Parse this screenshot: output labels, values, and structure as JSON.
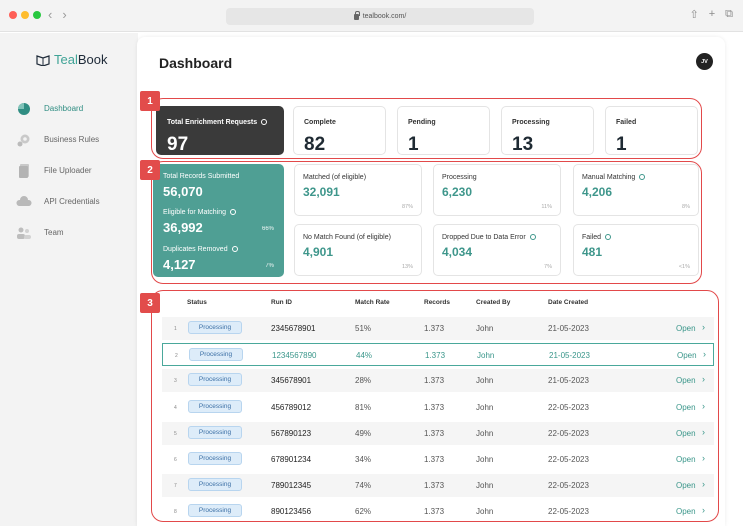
{
  "browser": {
    "url": "tealbook.com/",
    "back_icon": "chevron-left-icon",
    "forward_icon": "chevron-right-icon"
  },
  "sidebar": {
    "logo": {
      "prefix": "Teal",
      "suffix": "Book"
    },
    "items": [
      {
        "label": "Dashboard",
        "icon": "dashboard-icon",
        "active": true
      },
      {
        "label": "Business Rules",
        "icon": "gear-icon",
        "active": false
      },
      {
        "label": "File Uploader",
        "icon": "file-icon",
        "active": false
      },
      {
        "label": "API Credentials",
        "icon": "cloud-icon",
        "active": false
      },
      {
        "label": "Team",
        "icon": "team-icon",
        "active": false
      }
    ]
  },
  "header": {
    "title": "Dashboard",
    "avatar_initials": "JV"
  },
  "badges": [
    "1",
    "2",
    "3"
  ],
  "summary": [
    {
      "label": "Total Enrichment Requests",
      "value": "97",
      "info": true,
      "dark": true
    },
    {
      "label": "Complete",
      "value": "82"
    },
    {
      "label": "Pending",
      "value": "1"
    },
    {
      "label": "Processing",
      "value": "13"
    },
    {
      "label": "Failed",
      "value": "1"
    }
  ],
  "records": {
    "total_label": "Total Records Submitted",
    "total_value": "56,070",
    "eligible_label": "Eligible for Matching",
    "eligible_value": "36,992",
    "eligible_pct": "66%",
    "duplicates_label": "Duplicates Removed",
    "duplicates_value": "4,127",
    "duplicates_pct": "7%"
  },
  "metrics": [
    {
      "label": "Matched (of eligible)",
      "value": "32,091",
      "pct": "87%"
    },
    {
      "label": "Processing",
      "value": "6,230",
      "pct": "11%"
    },
    {
      "label": "Manual Matching",
      "value": "4,206",
      "pct": "8%",
      "info": true
    },
    {
      "label": "No Match Found (of eligible)",
      "value": "4,901",
      "pct": "13%"
    },
    {
      "label": "Dropped Due to Data Error",
      "value": "4,034",
      "pct": "7%",
      "info": true
    },
    {
      "label": "Failed",
      "value": "481",
      "pct": "<1%",
      "info": true
    }
  ],
  "table": {
    "headers": [
      "Status",
      "Run ID",
      "Match Rate",
      "Records",
      "Created By",
      "Date Created"
    ],
    "open_label": "Open",
    "rows": [
      {
        "num": "1",
        "status": "Processing",
        "run_id": "2345678901",
        "rate": "51%",
        "records": "1.373",
        "by": "John",
        "date": "21-05-2023"
      },
      {
        "num": "2",
        "status": "Processing",
        "run_id": "1234567890",
        "rate": "44%",
        "records": "1.373",
        "by": "John",
        "date": "21-05-2023"
      },
      {
        "num": "3",
        "status": "Processing",
        "run_id": "345678901",
        "rate": "28%",
        "records": "1.373",
        "by": "John",
        "date": "21-05-2023"
      },
      {
        "num": "4",
        "status": "Processing",
        "run_id": "456789012",
        "rate": "81%",
        "records": "1.373",
        "by": "John",
        "date": "22-05-2023"
      },
      {
        "num": "5",
        "status": "Processing",
        "run_id": "567890123",
        "rate": "49%",
        "records": "1.373",
        "by": "John",
        "date": "22-05-2023"
      },
      {
        "num": "6",
        "status": "Processing",
        "run_id": "678901234",
        "rate": "34%",
        "records": "1.373",
        "by": "John",
        "date": "22-05-2023"
      },
      {
        "num": "7",
        "status": "Processing",
        "run_id": "789012345",
        "rate": "74%",
        "records": "1.373",
        "by": "John",
        "date": "22-05-2023"
      },
      {
        "num": "8",
        "status": "Processing",
        "run_id": "890123456",
        "rate": "62%",
        "records": "1.373",
        "by": "John",
        "date": "22-05-2023"
      }
    ]
  },
  "colors": {
    "accent": "#4f9f94",
    "annotation": "#e24c4b",
    "status_bg": "#ddecf9"
  }
}
